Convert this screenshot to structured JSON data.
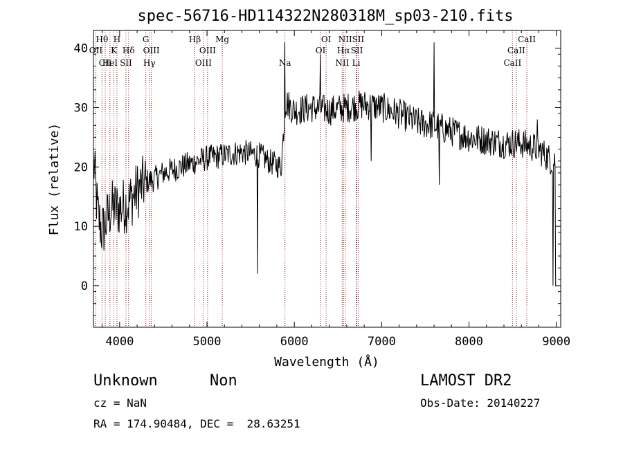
{
  "chart_data": {
    "type": "line",
    "title": "spec-56716-HD114322N280318M_sp03-210.fits",
    "xlabel": "Wavelength (Å)",
    "ylabel": "Flux (relative)",
    "xlim": [
      3700,
      9050
    ],
    "ylim": [
      -7,
      43
    ],
    "xticks": [
      4000,
      5000,
      6000,
      7000,
      8000,
      9000
    ],
    "yticks": [
      0,
      10,
      20,
      30,
      40
    ],
    "grid": false,
    "line_color": "#000000",
    "marker_color": "#8b1a1a",
    "spectrum_anchors": [
      [
        3700,
        21
      ],
      [
        3750,
        12
      ],
      [
        3800,
        9
      ],
      [
        3900,
        13
      ],
      [
        4000,
        13
      ],
      [
        4100,
        14
      ],
      [
        4200,
        16
      ],
      [
        4300,
        17.5
      ],
      [
        4400,
        18
      ],
      [
        4500,
        19
      ],
      [
        4700,
        20
      ],
      [
        4900,
        21
      ],
      [
        5000,
        21.5
      ],
      [
        5200,
        22
      ],
      [
        5400,
        22.5
      ],
      [
        5600,
        22
      ],
      [
        5700,
        21
      ],
      [
        5850,
        20
      ],
      [
        5900,
        31
      ],
      [
        6000,
        29.5
      ],
      [
        6200,
        30
      ],
      [
        6400,
        29.5
      ],
      [
        6600,
        30
      ],
      [
        6800,
        30.5
      ],
      [
        7000,
        30
      ],
      [
        7200,
        29
      ],
      [
        7400,
        27.5
      ],
      [
        7600,
        27
      ],
      [
        7800,
        26
      ],
      [
        8000,
        25
      ],
      [
        8200,
        24.5
      ],
      [
        8400,
        24
      ],
      [
        8600,
        24
      ],
      [
        8800,
        23
      ],
      [
        8950,
        21
      ],
      [
        9000,
        21
      ]
    ],
    "features": [
      {
        "x": 5577,
        "y": 2
      },
      {
        "x": 5890,
        "y": 41
      },
      {
        "x": 6300,
        "y": 39
      },
      {
        "x": 7600,
        "y": 41
      },
      {
        "x": 7660,
        "y": 17
      },
      {
        "x": 6880,
        "y": 21
      },
      {
        "x": 8780,
        "y": 28
      },
      {
        "x": 8960,
        "y": 0
      },
      {
        "x": 8995,
        "y": 0
      }
    ],
    "lines": [
      {
        "x": 3727,
        "label": "OII",
        "row": 1
      },
      {
        "x": 3798,
        "label": "Hθ",
        "row": 0
      },
      {
        "x": 3835,
        "label": "CII",
        "row": 2
      },
      {
        "x": 3889,
        "label": "HeI",
        "row": 2
      },
      {
        "x": 3934,
        "label": "K",
        "row": 1
      },
      {
        "x": 3969,
        "label": "H",
        "row": 0
      },
      {
        "x": 4072,
        "label": "SII",
        "row": 2
      },
      {
        "x": 4102,
        "label": "Hδ",
        "row": 1
      },
      {
        "x": 4300,
        "label": "G",
        "row": 0
      },
      {
        "x": 4340,
        "label": "Hγ",
        "row": 2
      },
      {
        "x": 4363,
        "label": "OIII",
        "row": 1
      },
      {
        "x": 4861,
        "label": "Hβ",
        "row": 0
      },
      {
        "x": 4959,
        "label": "OIII",
        "row": 2
      },
      {
        "x": 5007,
        "label": "OIII",
        "row": 1
      },
      {
        "x": 5175,
        "label": "Mg",
        "row": 0
      },
      {
        "x": 5893,
        "label": "Na",
        "row": 2
      },
      {
        "x": 6300,
        "label": "OI",
        "row": 1
      },
      {
        "x": 6364,
        "label": "OI",
        "row": 0
      },
      {
        "x": 6548,
        "label": "NII",
        "row": 2
      },
      {
        "x": 6563,
        "label": "Hα",
        "row": 1
      },
      {
        "x": 6583,
        "label": "NII",
        "row": 0
      },
      {
        "x": 6708,
        "label": "Li",
        "row": 2
      },
      {
        "x": 6716,
        "label": "SII",
        "row": 1
      },
      {
        "x": 6731,
        "label": "SII",
        "row": 0
      },
      {
        "x": 8498,
        "label": "CaII",
        "row": 2
      },
      {
        "x": 8542,
        "label": "CaII",
        "row": 1
      },
      {
        "x": 8662,
        "label": "CaII",
        "row": 0
      }
    ]
  },
  "info": {
    "class": "Unknown",
    "subclass": "Non",
    "survey": "LAMOST DR2",
    "cz": "cz = NaN",
    "obs_date": "Obs-Date: 20140227",
    "coords": "RA = 174.90484, DEC =  28.63251"
  }
}
